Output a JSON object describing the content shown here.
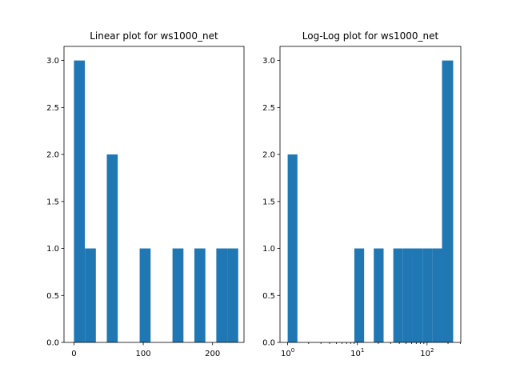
{
  "chart_data": [
    {
      "type": "bar",
      "title": "Linear plot for ws1000_net",
      "xscale": "linear",
      "xlim": [
        -14.35,
        245.35
      ],
      "ylim": [
        0,
        3.15
      ],
      "xticks": [
        0,
        100,
        200
      ],
      "xtick_labels": [
        "0",
        "100",
        "200"
      ],
      "yticks": [
        0.0,
        0.5,
        1.0,
        1.5,
        2.0,
        2.5,
        3.0
      ],
      "ytick_labels": [
        "0.0",
        "0.5",
        "1.0",
        "1.5",
        "2.0",
        "2.5",
        "3.0"
      ],
      "bar_color": "#1f77b4",
      "bins": [
        {
          "x0": 0.0,
          "x1": 15.8,
          "value": 3
        },
        {
          "x0": 15.8,
          "x1": 31.6,
          "value": 1
        },
        {
          "x0": 47.4,
          "x1": 63.2,
          "value": 2
        },
        {
          "x0": 94.8,
          "x1": 110.6,
          "value": 1
        },
        {
          "x0": 142.2,
          "x1": 158.0,
          "value": 1
        },
        {
          "x0": 173.8,
          "x1": 189.6,
          "value": 1
        },
        {
          "x0": 205.4,
          "x1": 221.2,
          "value": 1
        },
        {
          "x0": 221.2,
          "x1": 237.0,
          "value": 1
        }
      ]
    },
    {
      "type": "bar",
      "title": "Log-Log plot for ws1000_net",
      "xscale": "log",
      "xlim": [
        0.776,
        305.0
      ],
      "ylim": [
        0,
        3.15
      ],
      "xticks": [
        1,
        10,
        100
      ],
      "xtick_labels": [
        {
          "base": "10",
          "exp": "0"
        },
        {
          "base": "10",
          "exp": "1"
        },
        {
          "base": "10",
          "exp": "2"
        }
      ],
      "minor_xticks": [
        2,
        3,
        4,
        5,
        6,
        7,
        8,
        9,
        20,
        30,
        40,
        50,
        60,
        70,
        80,
        90,
        200,
        300
      ],
      "yticks": [
        0.0,
        0.5,
        1.0,
        1.5,
        2.0,
        2.5,
        3.0
      ],
      "ytick_labels": [
        "0.0",
        "0.5",
        "1.0",
        "1.5",
        "2.0",
        "2.5",
        "3.0"
      ],
      "bar_color": "#1f77b4",
      "bins": [
        {
          "x0": 1.0,
          "x1": 1.38,
          "value": 2
        },
        {
          "x0": 9.05,
          "x1": 12.5,
          "value": 1
        },
        {
          "x0": 17.2,
          "x1": 23.8,
          "value": 1
        },
        {
          "x0": 32.8,
          "x1": 45.2,
          "value": 1
        },
        {
          "x0": 45.2,
          "x1": 62.4,
          "value": 1
        },
        {
          "x0": 62.4,
          "x1": 86.1,
          "value": 1
        },
        {
          "x0": 86.1,
          "x1": 118.8,
          "value": 1
        },
        {
          "x0": 118.8,
          "x1": 164.0,
          "value": 1
        },
        {
          "x0": 164.0,
          "x1": 237.0,
          "value": 3
        }
      ]
    }
  ]
}
